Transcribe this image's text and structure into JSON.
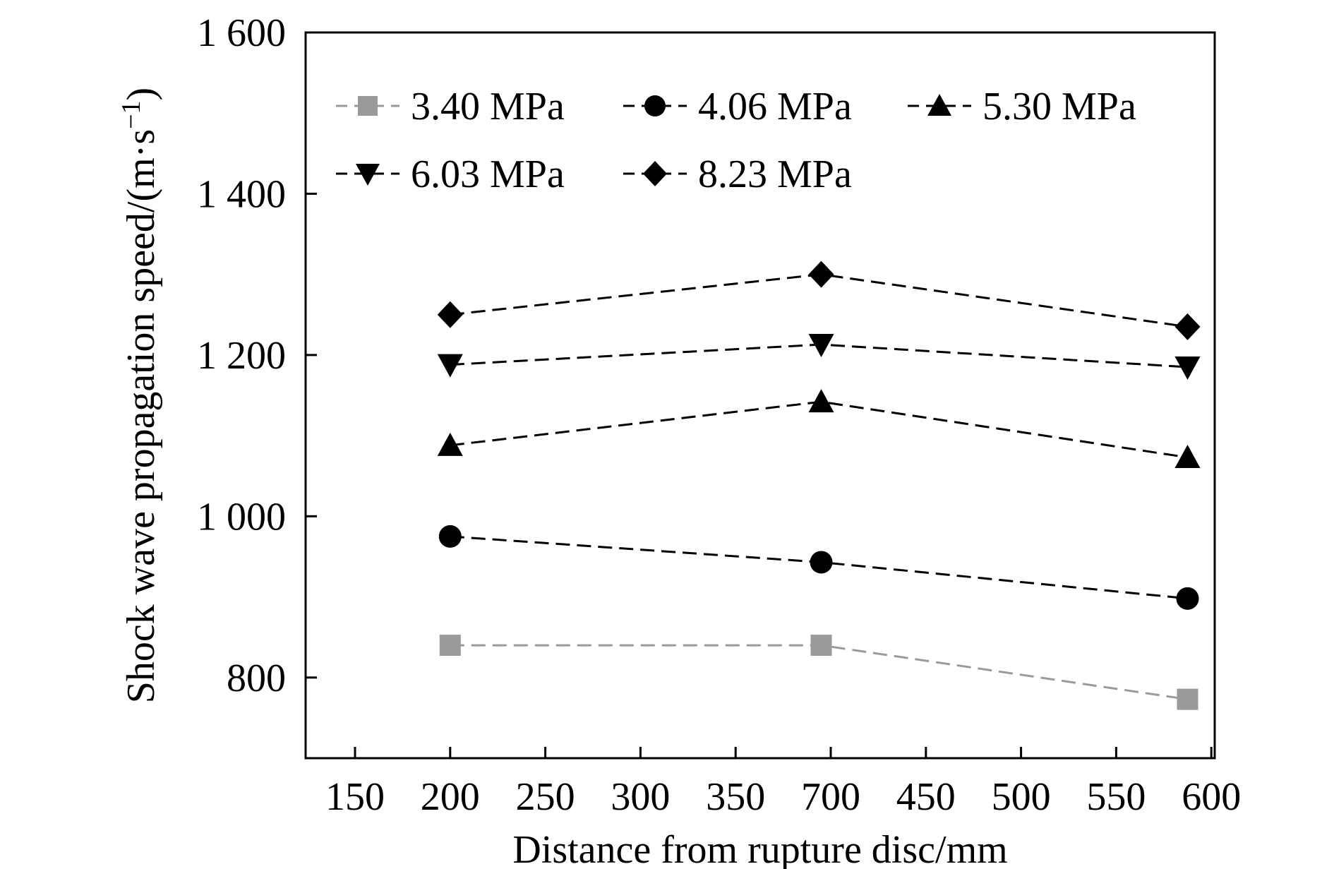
{
  "chart_data": {
    "type": "line",
    "title": "",
    "xlabel": "Distance from rupture disc/mm",
    "ylabel_main": "Shock wave propagation speed/(m·s",
    "ylabel_sup": "−1",
    "ylabel_close": ")",
    "x_tick_labels": [
      "150",
      "200",
      "250",
      "300",
      "350",
      "700",
      "450",
      "500",
      "550",
      "600"
    ],
    "y_tick_labels": [
      "800",
      "1 000",
      "1 200",
      "1 400",
      "1 600"
    ],
    "y_ticks": [
      800,
      1000,
      1200,
      1400,
      1600
    ],
    "ylim": [
      700,
      1600
    ],
    "x_category_count": 10,
    "x_positions": [
      1.15,
      5.05,
      8.9
    ],
    "grid": false,
    "legend_position": "top",
    "series": [
      {
        "name": "3.40 MPa",
        "marker": "square",
        "color": "#9a9a9a",
        "values": [
          840,
          840,
          773
        ]
      },
      {
        "name": "4.06 MPa",
        "marker": "circle",
        "color": "#000000",
        "values": [
          975,
          943,
          898
        ]
      },
      {
        "name": "5.30 MPa",
        "marker": "triangle-up",
        "color": "#000000",
        "values": [
          1088,
          1142,
          1073
        ]
      },
      {
        "name": "6.03 MPa",
        "marker": "triangle-down",
        "color": "#000000",
        "values": [
          1188,
          1213,
          1185
        ]
      },
      {
        "name": "8.23 MPa",
        "marker": "diamond",
        "color": "#000000",
        "values": [
          1250,
          1300,
          1235
        ]
      }
    ]
  }
}
